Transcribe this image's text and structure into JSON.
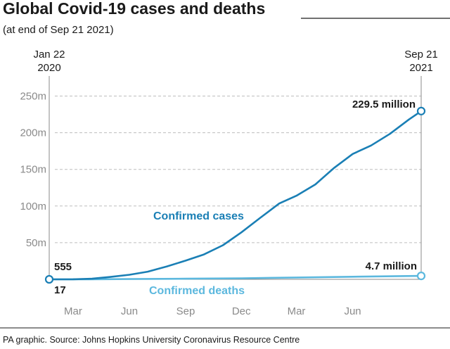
{
  "title": "Global Covid-19 cases and deaths",
  "subtitle": "(at end of Sep 21 2021)",
  "source": "PA graphic. Source: Johns Hopkins University Coronavirus Resource Centre",
  "colors": {
    "cases": "#1a7fb5",
    "deaths": "#5cb8de",
    "grid": "#bdbdbd",
    "axis": "#888888"
  },
  "chart_data": {
    "type": "line",
    "x_start": {
      "line1": "Jan 22",
      "line2": "2020"
    },
    "x_end": {
      "line1": "Sep 21",
      "line2": "2021"
    },
    "x_ticks": [
      "Mar",
      "Jun",
      "Sep",
      "Dec",
      "Mar",
      "Jun"
    ],
    "x_tick_dates": [
      "2020-03-01",
      "2020-06-01",
      "2020-09-01",
      "2020-12-01",
      "2021-03-01",
      "2021-06-01"
    ],
    "y_ticks": [
      "250m",
      "200m",
      "150m",
      "100m",
      "50m"
    ],
    "y_tick_values": [
      250,
      200,
      150,
      100,
      50
    ],
    "y_unit": "millions",
    "ylim": [
      0,
      260
    ],
    "grid": true,
    "series": [
      {
        "name": "Confirmed cases",
        "start_label": "555",
        "end_label": "229.5 million",
        "points": [
          [
            "2020-01-22",
            0.000555
          ],
          [
            "2020-03-01",
            0.09
          ],
          [
            "2020-04-01",
            0.9
          ],
          [
            "2020-05-01",
            3.3
          ],
          [
            "2020-06-01",
            6.2
          ],
          [
            "2020-07-01",
            10.5
          ],
          [
            "2020-08-01",
            17.6
          ],
          [
            "2020-09-01",
            25.5
          ],
          [
            "2020-10-01",
            34
          ],
          [
            "2020-11-01",
            46.5
          ],
          [
            "2020-12-01",
            64
          ],
          [
            "2021-01-01",
            84
          ],
          [
            "2021-02-01",
            103.5
          ],
          [
            "2021-03-01",
            114
          ],
          [
            "2021-04-01",
            129.5
          ],
          [
            "2021-05-01",
            151.5
          ],
          [
            "2021-06-01",
            171
          ],
          [
            "2021-07-01",
            182.5
          ],
          [
            "2021-08-01",
            198.5
          ],
          [
            "2021-09-01",
            218
          ],
          [
            "2021-09-21",
            229.5
          ]
        ]
      },
      {
        "name": "Confirmed deaths",
        "start_label": "17",
        "end_label": "4.7 million",
        "points": [
          [
            "2020-01-22",
            1.7e-05
          ],
          [
            "2020-04-01",
            0.05
          ],
          [
            "2020-06-01",
            0.37
          ],
          [
            "2020-09-01",
            0.86
          ],
          [
            "2020-12-01",
            1.47
          ],
          [
            "2021-03-01",
            2.54
          ],
          [
            "2021-06-01",
            3.55
          ],
          [
            "2021-09-21",
            4.7
          ]
        ]
      }
    ]
  }
}
